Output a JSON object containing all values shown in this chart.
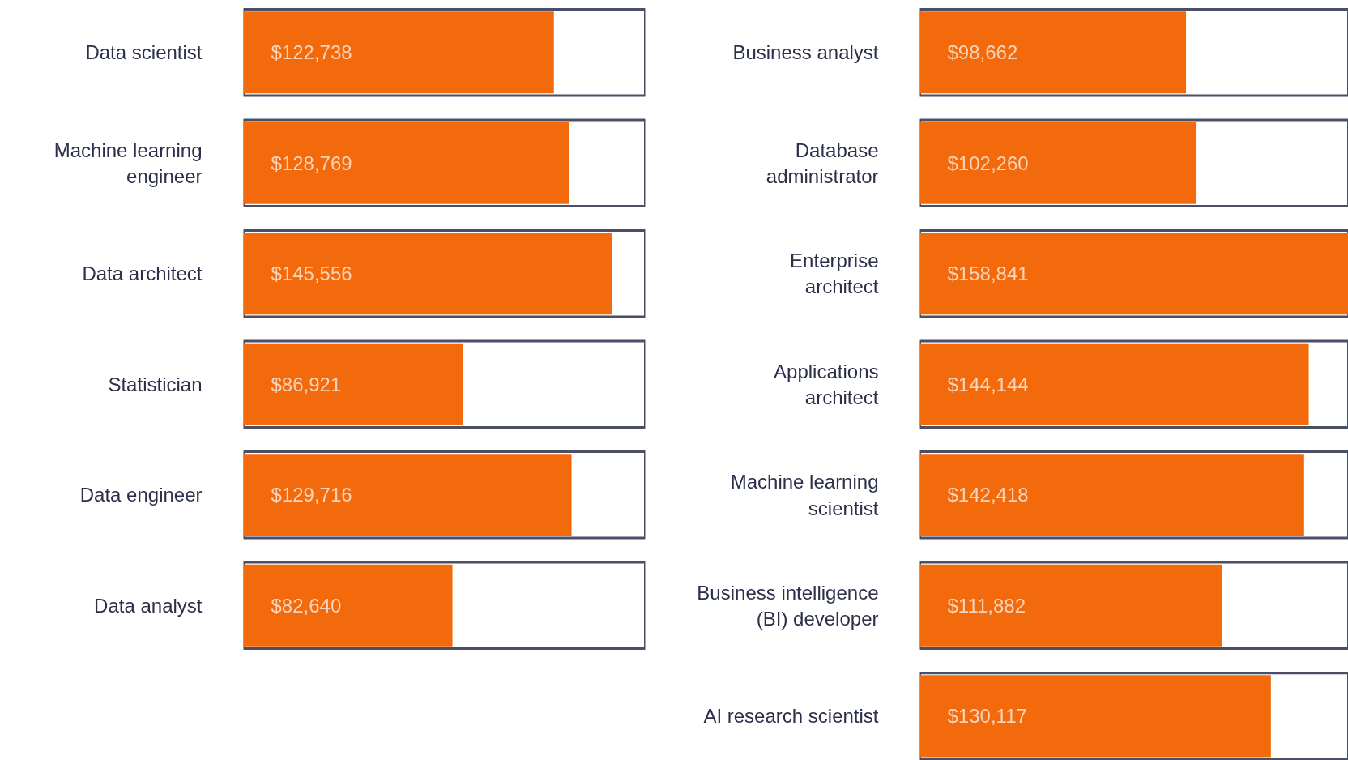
{
  "chart_data": [
    {
      "type": "bar",
      "orientation": "horizontal",
      "categories": [
        "Data scientist",
        "Machine learning\nengineer",
        "Data architect",
        "Statistician",
        "Data engineer",
        "Data analyst"
      ],
      "values": [
        122738,
        128769,
        145556,
        86921,
        129716,
        82640
      ],
      "value_labels": [
        "$122,738",
        "$128,769",
        "$145,556",
        "$86,921",
        "$129,716",
        "$82,640"
      ],
      "color": "#f26a0c",
      "xlim": [
        0,
        158841
      ],
      "tick_labels": "y"
    },
    {
      "type": "bar",
      "orientation": "horizontal",
      "categories": [
        "Business analyst",
        "Database\nadministrator",
        "Enterprise\narchitect",
        "Applications\narchitect",
        "Machine learning\nscientist",
        "Business intelligence\n(BI) developer",
        "AI research scientist"
      ],
      "values": [
        98662,
        102260,
        158841,
        144144,
        142418,
        111882,
        130117
      ],
      "value_labels": [
        "$98,662",
        "$102,260",
        "$158,841",
        "$144,144",
        "$142,418",
        "$111,882",
        "$130,117"
      ],
      "color": "#f26a0c",
      "xlim": [
        0,
        158841
      ],
      "tick_labels": "y"
    }
  ]
}
